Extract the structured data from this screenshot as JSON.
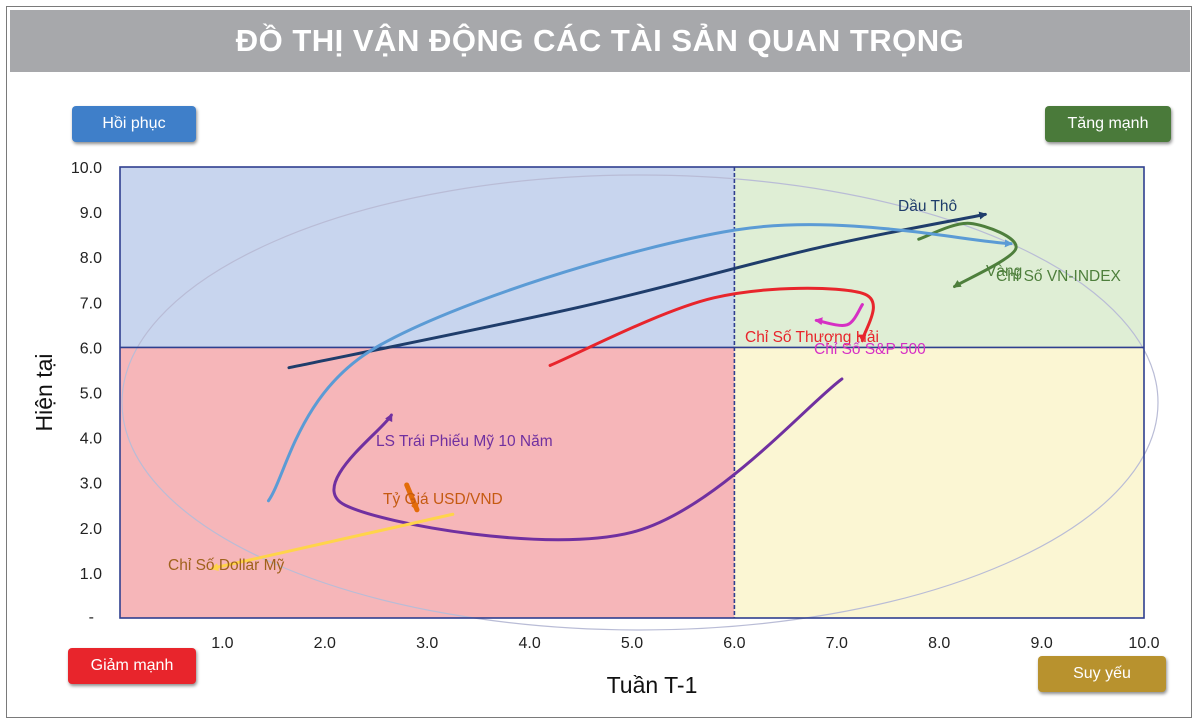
{
  "header": {
    "title": "ĐỒ THỊ VẬN ĐỘNG CÁC TÀI SẢN QUAN TRỌNG"
  },
  "quadrants": {
    "top_left": {
      "label": "Hồi phục",
      "color": "#3f7fc9"
    },
    "top_right": {
      "label": "Tăng mạnh",
      "color": "#4a7a3a"
    },
    "bottom_left": {
      "label": "Giảm mạnh",
      "color": "#e8252c"
    },
    "bottom_right": {
      "label": "Suy yếu",
      "color": "#b8922e"
    },
    "fills": {
      "top_left": "#c8d5ee",
      "top_right": "#dfeed5",
      "bottom_left": "#f6b6b9",
      "bottom_right": "#fbf6d3"
    }
  },
  "chart_data": {
    "type": "line",
    "xlabel": "Tuần T-1",
    "ylabel": "Hiện tại",
    "xlim": [
      0,
      10
    ],
    "ylim": [
      0,
      10
    ],
    "x_ticks": [
      "1.0",
      "2.0",
      "3.0",
      "4.0",
      "5.0",
      "6.0",
      "7.0",
      "8.0",
      "9.0",
      "10.0"
    ],
    "y_ticks": [
      "1.0",
      "2.0",
      "3.0",
      "4.0",
      "5.0",
      "6.0",
      "7.0",
      "8.0",
      "9.0",
      "10.0"
    ],
    "y_zero_tick": "-",
    "dividers": {
      "x": 6.0,
      "y": 6.0
    },
    "grid": false,
    "series": [
      {
        "name": "Dầu Thô",
        "color": "#1f3d6b",
        "label_color": "#1f3d6b",
        "points": [
          [
            1.65,
            5.55
          ],
          [
            4.5,
            6.9
          ],
          [
            6.8,
            8.2
          ],
          [
            8.45,
            8.95
          ]
        ]
      },
      {
        "name": "Vàng",
        "color": "#4e7f3c",
        "label_color": "#4e7f3c",
        "points": [
          [
            7.8,
            8.4
          ],
          [
            8.3,
            8.75
          ],
          [
            8.75,
            8.2
          ],
          [
            8.15,
            7.35
          ]
        ]
      },
      {
        "name": "Chỉ Số VN-INDEX",
        "color": "#5b9bd5",
        "label_color": "#4e7f3c",
        "points": [
          [
            1.45,
            2.6
          ],
          [
            2.5,
            6.0
          ],
          [
            6.0,
            8.6
          ],
          [
            8.7,
            8.3
          ]
        ]
      },
      {
        "name": "Chỉ Số Thượng Hải",
        "color": "#e8252c",
        "label_color": "#e8252c",
        "points": [
          [
            4.2,
            5.6
          ],
          [
            5.8,
            7.1
          ],
          [
            7.25,
            7.2
          ],
          [
            7.25,
            6.15
          ]
        ]
      },
      {
        "name": "Chỉ Số S&P 500",
        "color": "#d62fc4",
        "label_color": "#d62fc4",
        "points": [
          [
            7.25,
            6.95
          ],
          [
            7.1,
            6.5
          ],
          [
            6.8,
            6.6
          ]
        ]
      },
      {
        "name": "LS Trái Phiếu Mỹ 10 Năm",
        "color": "#7030a0",
        "label_color": "#7030a0",
        "points": [
          [
            7.05,
            5.3
          ],
          [
            5.0,
            1.9
          ],
          [
            2.2,
            2.5
          ],
          [
            2.65,
            4.5
          ]
        ]
      },
      {
        "name": "Tỷ Giá USD/VND",
        "color": "#e36c09",
        "label_color": "#c55a11",
        "points": [
          [
            2.8,
            2.95
          ],
          [
            2.9,
            2.4
          ]
        ]
      },
      {
        "name": "Chỉ Số Dollar Mỹ",
        "color": "#ffd44a",
        "label_color": "#a0621c",
        "points": [
          [
            3.25,
            2.3
          ],
          [
            0.9,
            1.1
          ]
        ]
      }
    ]
  }
}
